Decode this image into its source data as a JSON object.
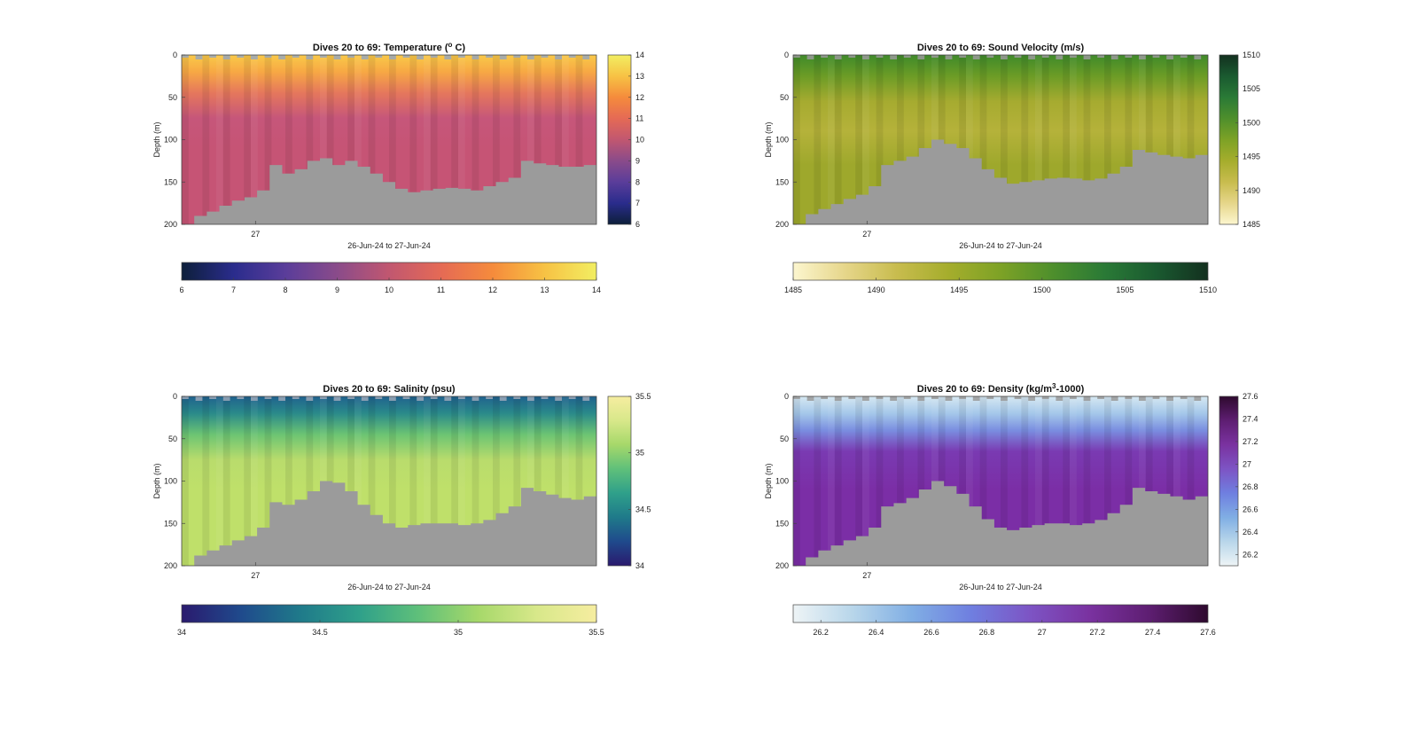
{
  "chart_data": [
    {
      "type": "heatmap",
      "title": "Dives 20 to 69: Temperature (",
      "title_sup": "o",
      "title_tail": " C)",
      "xlabel": "26-Jun-24 to 27-Jun-24",
      "ylabel": "Depth (m)",
      "xtick_labels": [
        "27"
      ],
      "yticks": [
        0,
        50,
        100,
        150,
        200
      ],
      "ylim": [
        0,
        200
      ],
      "clim": [
        6,
        14
      ],
      "cbar_side_ticks": [
        "14",
        "13",
        "12",
        "11",
        "10",
        "9",
        "8",
        "7",
        "6"
      ],
      "cbar_bottom_ticks": [
        "6",
        "7",
        "8",
        "9",
        "10",
        "11",
        "12",
        "13",
        "14"
      ],
      "colormap": [
        "#0d1f3a",
        "#2a2c8c",
        "#5a3d9a",
        "#8a4b8a",
        "#c15770",
        "#e56a55",
        "#f58b3c",
        "#f7c244",
        "#f2ee62"
      ],
      "layers": [
        {
          "depth": 0,
          "color": "#f9c949"
        },
        {
          "depth": 20,
          "color": "#f7a844"
        },
        {
          "depth": 45,
          "color": "#e5775c"
        },
        {
          "depth": 75,
          "color": "#c6567a"
        },
        {
          "depth": 110,
          "color": "#c65475"
        }
      ],
      "surface_color": "#9aa7b8",
      "bottom_depth": [
        200,
        190,
        185,
        178,
        172,
        168,
        160,
        130,
        140,
        135,
        125,
        122,
        130,
        125,
        132,
        140,
        150,
        158,
        162,
        160,
        158,
        157,
        158,
        160,
        155,
        150,
        145,
        125,
        128,
        130,
        132,
        132,
        130
      ]
    },
    {
      "type": "heatmap",
      "title": "Dives 20 to 69: Sound Velocity (m/s)",
      "xlabel": "26-Jun-24 to 27-Jun-24",
      "ylabel": "Depth (m)",
      "xtick_labels": [
        "27"
      ],
      "yticks": [
        0,
        50,
        100,
        150,
        200
      ],
      "ylim": [
        0,
        200
      ],
      "clim": [
        1485,
        1510
      ],
      "cbar_side_ticks": [
        "1510",
        "1505",
        "1500",
        "1495",
        "1490",
        "1485"
      ],
      "cbar_bottom_ticks": [
        "1485",
        "1490",
        "1495",
        "1500",
        "1505",
        "1510"
      ],
      "colormap": [
        "#fcf6cf",
        "#e6d68a",
        "#c8bc4e",
        "#a5ad2c",
        "#7da226",
        "#4e8f2c",
        "#2a7a36",
        "#1a5a30",
        "#13301f"
      ],
      "layers": [
        {
          "depth": 0,
          "color": "#3f8a2a"
        },
        {
          "depth": 25,
          "color": "#6c9c26"
        },
        {
          "depth": 55,
          "color": "#a6ab30"
        },
        {
          "depth": 90,
          "color": "#b5b23a"
        },
        {
          "depth": 130,
          "color": "#9ea82c"
        }
      ],
      "surface_color": "#9a9a9a",
      "bottom_depth": [
        200,
        188,
        182,
        176,
        170,
        165,
        155,
        130,
        125,
        120,
        110,
        100,
        105,
        110,
        122,
        135,
        145,
        152,
        150,
        148,
        146,
        145,
        146,
        148,
        146,
        140,
        132,
        112,
        115,
        118,
        120,
        122,
        118
      ]
    },
    {
      "type": "heatmap",
      "title": "Dives 20 to 69: Salinity (psu)",
      "xlabel": "26-Jun-24 to 27-Jun-24",
      "ylabel": "Depth (m)",
      "xtick_labels": [
        "27"
      ],
      "yticks": [
        0,
        50,
        100,
        150,
        200
      ],
      "ylim": [
        0,
        200
      ],
      "clim": [
        34,
        35.5
      ],
      "cbar_side_ticks": [
        "35.5",
        "35",
        "34.5",
        "34"
      ],
      "cbar_bottom_ticks": [
        "34",
        "34.5",
        "35",
        "35.5"
      ],
      "colormap": [
        "#2a1a6e",
        "#1f4a8c",
        "#1f7a8a",
        "#2fa08a",
        "#5fc07a",
        "#a6d86a",
        "#d8e88a",
        "#f6eda0"
      ],
      "layers": [
        {
          "depth": 0,
          "color": "#20628e"
        },
        {
          "depth": 20,
          "color": "#2a8a8a"
        },
        {
          "depth": 45,
          "color": "#6cc473"
        },
        {
          "depth": 75,
          "color": "#b9dc6c"
        },
        {
          "depth": 110,
          "color": "#bfe06a"
        }
      ],
      "surface_color": "#9aa7b8",
      "bottom_depth": [
        200,
        188,
        182,
        176,
        170,
        165,
        155,
        125,
        128,
        122,
        112,
        100,
        102,
        112,
        128,
        140,
        150,
        155,
        152,
        150,
        150,
        150,
        152,
        150,
        146,
        138,
        130,
        108,
        112,
        116,
        120,
        122,
        118
      ]
    },
    {
      "type": "heatmap",
      "title": "Dives 20 to 69: Density (kg/m",
      "title_sup": "3",
      "title_tail": "-1000)",
      "xlabel": "26-Jun-24 to 27-Jun-24",
      "ylabel": "Depth (m)",
      "xtick_labels": [
        "27"
      ],
      "yticks": [
        0,
        50,
        100,
        150,
        200
      ],
      "ylim": [
        0,
        200
      ],
      "clim": [
        26.1,
        27.6
      ],
      "cbar_side_ticks": [
        "27.6",
        "27.4",
        "27.2",
        "27",
        "26.8",
        "26.6",
        "26.4",
        "26.2"
      ],
      "cbar_bottom_ticks": [
        "26.2",
        "26.4",
        "26.6",
        "26.8",
        "27",
        "27.2",
        "27.4",
        "27.6"
      ],
      "colormap": [
        "#eef4f6",
        "#b8d6ea",
        "#80aee4",
        "#6f7fe0",
        "#7d54c4",
        "#7a32a0",
        "#5e1e72",
        "#2e0a2e"
      ],
      "layers": [
        {
          "depth": 0,
          "color": "#d6e8f2"
        },
        {
          "depth": 20,
          "color": "#a5c8ea"
        },
        {
          "depth": 40,
          "color": "#7a8ee0"
        },
        {
          "depth": 65,
          "color": "#7a3ab2"
        },
        {
          "depth": 110,
          "color": "#7b2ea6"
        }
      ],
      "surface_color": "#9a9a9a",
      "bottom_depth": [
        200,
        190,
        182,
        176,
        170,
        165,
        155,
        130,
        126,
        120,
        110,
        100,
        106,
        115,
        130,
        145,
        155,
        158,
        155,
        152,
        150,
        150,
        152,
        150,
        146,
        138,
        128,
        108,
        112,
        115,
        118,
        122,
        118
      ]
    }
  ]
}
